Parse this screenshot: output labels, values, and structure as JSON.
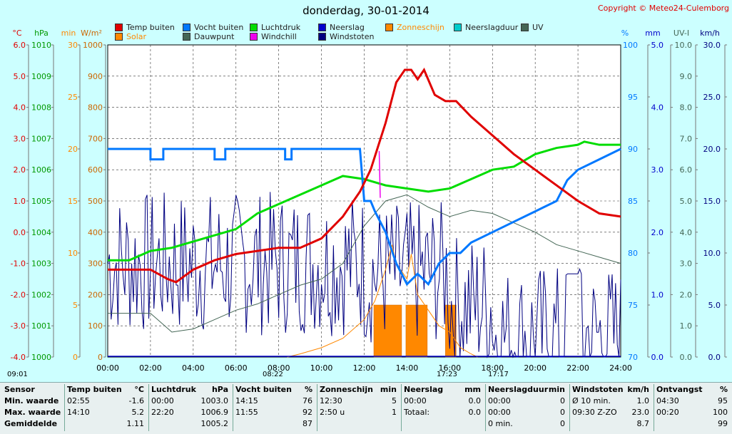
{
  "title": "donderdag, 30-01-2014",
  "copyright": "Copyright © Meteo24-Culemborg",
  "legend": [
    {
      "label": "Temp buiten",
      "color": "#e00000"
    },
    {
      "label": "Solar",
      "color": "#ff8800"
    },
    {
      "label": "Vocht buiten",
      "color": "#0078ff"
    },
    {
      "label": "Dauwpunt",
      "color": "#446655"
    },
    {
      "label": "Luchtdruk",
      "color": "#00dd00"
    },
    {
      "label": "Windchill",
      "color": "#ee00ee"
    },
    {
      "label": "Neerslag",
      "color": "#0000cc"
    },
    {
      "label": "Windstoten",
      "color": "#000080"
    },
    {
      "label": "Zonneschijn",
      "color": "#ff8800"
    },
    {
      "label": "Neerslagduur",
      "color": "#00cccc"
    },
    {
      "label": "UV",
      "color": "#446655"
    }
  ],
  "axes": {
    "temp": {
      "unit": "°C",
      "ticks": [
        "6.0",
        "5.0",
        "4.0",
        "3.0",
        "2.0",
        "1.0",
        "0.0",
        "-1.0",
        "-2.0",
        "-3.0",
        "-4.0"
      ],
      "color": "#e00000"
    },
    "pressure": {
      "unit": "hPa",
      "ticks": [
        "1010",
        "1009",
        "1008",
        "1007",
        "1006",
        "1005",
        "1004",
        "1003",
        "1002",
        "1001",
        "1000"
      ],
      "color": "#009900"
    },
    "sunmin": {
      "unit": "min",
      "ticks": [
        "30",
        "25",
        "20",
        "15",
        "10",
        "5",
        "0"
      ],
      "color": "#ff8800"
    },
    "solar": {
      "unit": "W/m²",
      "ticks": [
        "1000",
        "900",
        "800",
        "700",
        "600",
        "500",
        "400",
        "300",
        "200",
        "100",
        "0"
      ],
      "color": "#cc6600"
    },
    "humidity": {
      "unit": "%",
      "ticks": [
        "100",
        "95",
        "90",
        "85",
        "80",
        "75",
        "70"
      ],
      "color": "#0078ff"
    },
    "rain": {
      "unit": "mm",
      "ticks": [
        "5.0",
        "4.0",
        "3.0",
        "2.0",
        "1.0",
        "0.0"
      ],
      "color": "#0000cc"
    },
    "uv": {
      "unit": "UV-I",
      "ticks": [
        "10.0",
        "9.0",
        "8.0",
        "7.0",
        "6.0",
        "5.0",
        "4.0",
        "3.0",
        "2.0",
        "1.0",
        "0.0"
      ],
      "color": "#446655"
    },
    "wind": {
      "unit": "km/h",
      "ticks": [
        "30.0",
        "25.0",
        "20.0",
        "15.0",
        "10.0",
        "5.0",
        "0.0"
      ],
      "color": "#000080"
    },
    "time": [
      "00:00",
      "02:00",
      "04:00",
      "06:00",
      "08:00",
      "10:00",
      "12:00",
      "14:00",
      "16:00",
      "18:00",
      "20:00",
      "22:00",
      "24:00"
    ]
  },
  "markers": {
    "sunrise": "08:22",
    "sunset": "17:23",
    "twilight_start": "09:01",
    "twilight_end": "17:17"
  },
  "chart_data": {
    "type": "line",
    "x_unit": "hours",
    "series": [
      {
        "name": "Temp buiten",
        "values": [
          [
            0,
            -1.2
          ],
          [
            2,
            -1.2
          ],
          [
            2.8,
            -1.5
          ],
          [
            3.2,
            -1.6
          ],
          [
            4,
            -1.2
          ],
          [
            5,
            -0.9
          ],
          [
            6,
            -0.7
          ],
          [
            7,
            -0.6
          ],
          [
            8,
            -0.5
          ],
          [
            9,
            -0.5
          ],
          [
            10,
            -0.2
          ],
          [
            11,
            0.5
          ],
          [
            11.8,
            1.3
          ],
          [
            12.3,
            2.0
          ],
          [
            13,
            3.5
          ],
          [
            13.5,
            4.8
          ],
          [
            13.9,
            5.2
          ],
          [
            14.2,
            5.2
          ],
          [
            14.5,
            4.9
          ],
          [
            14.8,
            5.2
          ],
          [
            15.3,
            4.4
          ],
          [
            15.8,
            4.2
          ],
          [
            16.3,
            4.2
          ],
          [
            17,
            3.7
          ],
          [
            18,
            3.1
          ],
          [
            19,
            2.5
          ],
          [
            20,
            2.0
          ],
          [
            21,
            1.5
          ],
          [
            22,
            1.0
          ],
          [
            23,
            0.6
          ],
          [
            24,
            0.5
          ]
        ]
      },
      {
        "name": "Vocht buiten",
        "values": [
          [
            0,
            90
          ],
          [
            2,
            90
          ],
          [
            2,
            89
          ],
          [
            2.6,
            89
          ],
          [
            2.6,
            90
          ],
          [
            5,
            90
          ],
          [
            5,
            89
          ],
          [
            5.5,
            89
          ],
          [
            5.5,
            90
          ],
          [
            8.3,
            90
          ],
          [
            8.3,
            89
          ],
          [
            8.6,
            89
          ],
          [
            8.6,
            90
          ],
          [
            11.8,
            90
          ],
          [
            12,
            85
          ],
          [
            12.3,
            85
          ],
          [
            12.5,
            84
          ],
          [
            13,
            82
          ],
          [
            13.5,
            79
          ],
          [
            14,
            77
          ],
          [
            14.5,
            78
          ],
          [
            15,
            77
          ],
          [
            15.5,
            79
          ],
          [
            16,
            80
          ],
          [
            16.5,
            80
          ],
          [
            17,
            81
          ],
          [
            18,
            82
          ],
          [
            19,
            83
          ],
          [
            20,
            84
          ],
          [
            21,
            85
          ],
          [
            21.5,
            87
          ],
          [
            22,
            88
          ],
          [
            23,
            89
          ],
          [
            24,
            90
          ]
        ]
      },
      {
        "name": "Luchtdruk",
        "values": [
          [
            0,
            1003.1
          ],
          [
            1,
            1003.1
          ],
          [
            2,
            1003.4
          ],
          [
            3,
            1003.5
          ],
          [
            4,
            1003.7
          ],
          [
            5,
            1003.9
          ],
          [
            6,
            1004.1
          ],
          [
            7,
            1004.6
          ],
          [
            8,
            1004.9
          ],
          [
            9,
            1005.2
          ],
          [
            10,
            1005.5
          ],
          [
            11,
            1005.8
          ],
          [
            12,
            1005.7
          ],
          [
            13,
            1005.5
          ],
          [
            14,
            1005.4
          ],
          [
            15,
            1005.3
          ],
          [
            16,
            1005.4
          ],
          [
            17,
            1005.7
          ],
          [
            18,
            1006.0
          ],
          [
            19,
            1006.1
          ],
          [
            20,
            1006.5
          ],
          [
            21,
            1006.7
          ],
          [
            22,
            1006.8
          ],
          [
            22.3,
            1006.9
          ],
          [
            23,
            1006.8
          ],
          [
            24,
            1006.8
          ]
        ]
      },
      {
        "name": "Dauwpunt",
        "values": [
          [
            0,
            -2.6
          ],
          [
            2,
            -2.6
          ],
          [
            3,
            -3.2
          ],
          [
            4,
            -3.1
          ],
          [
            5,
            -2.8
          ],
          [
            6,
            -2.5
          ],
          [
            7,
            -2.3
          ],
          [
            8,
            -2.0
          ],
          [
            9,
            -1.7
          ],
          [
            10,
            -1.5
          ],
          [
            11,
            -1.0
          ],
          [
            12,
            0.2
          ],
          [
            13,
            1.0
          ],
          [
            14,
            1.2
          ],
          [
            15,
            0.8
          ],
          [
            16,
            0.5
          ],
          [
            17,
            0.7
          ],
          [
            18,
            0.6
          ],
          [
            19,
            0.3
          ],
          [
            20,
            0
          ],
          [
            21,
            -0.4
          ],
          [
            22,
            -0.6
          ],
          [
            23,
            -0.8
          ],
          [
            24,
            -1.0
          ]
        ]
      },
      {
        "name": "Solar",
        "values": [
          [
            8.4,
            0
          ],
          [
            9,
            10
          ],
          [
            10,
            30
          ],
          [
            11,
            60
          ],
          [
            12,
            120
          ],
          [
            12.5,
            180
          ],
          [
            13,
            280
          ],
          [
            13.3,
            360
          ],
          [
            13.5,
            300
          ],
          [
            14,
            250
          ],
          [
            14.2,
            330
          ],
          [
            14.5,
            200
          ],
          [
            15,
            150
          ],
          [
            15.5,
            100
          ],
          [
            16,
            80
          ],
          [
            16.5,
            30
          ],
          [
            17,
            10
          ],
          [
            17.3,
            0
          ]
        ]
      },
      {
        "name": "Zonneschijn",
        "values": [
          [
            12.5,
            5
          ],
          [
            13,
            5
          ],
          [
            13.5,
            5
          ],
          [
            13.9,
            5
          ],
          [
            14,
            5
          ],
          [
            14.5,
            5
          ],
          [
            15,
            5
          ],
          [
            16.5,
            5
          ]
        ]
      }
    ],
    "xlim": [
      0,
      24
    ]
  },
  "stats": {
    "columns": [
      {
        "header": [
          "Sensor",
          ""
        ],
        "rows": [
          [
            "Min. waarde",
            ""
          ],
          [
            "Max. waarde",
            ""
          ],
          [
            "Gemiddelde",
            ""
          ]
        ]
      },
      {
        "header": [
          "Temp buiten",
          "°C"
        ],
        "rows": [
          [
            "02:55",
            "-1.6"
          ],
          [
            "14:10",
            "5.2"
          ],
          [
            "",
            "1.11"
          ]
        ]
      },
      {
        "header": [
          "Luchtdruk",
          "hPa"
        ],
        "rows": [
          [
            "00:00",
            "1003.0"
          ],
          [
            "22:20",
            "1006.9"
          ],
          [
            "",
            "1005.2"
          ]
        ]
      },
      {
        "header": [
          "Vocht buiten",
          "%"
        ],
        "rows": [
          [
            "14:15",
            "76"
          ],
          [
            "11:55",
            "92"
          ],
          [
            "",
            "87"
          ]
        ]
      },
      {
        "header": [
          "Zonneschijn",
          "min"
        ],
        "rows": [
          [
            "",
            ""
          ],
          [
            "12:30",
            "5"
          ],
          [
            "2:50 u",
            "1"
          ]
        ]
      },
      {
        "header": [
          "Neerslag",
          "mm"
        ],
        "rows": [
          [
            "",
            ""
          ],
          [
            "00:00",
            "0.0"
          ],
          [
            "Totaal:",
            "0.0"
          ]
        ]
      },
      {
        "header": [
          "Neerslagduur",
          "min"
        ],
        "rows": [
          [
            "00:00",
            "0"
          ],
          [
            "00:00",
            "0"
          ],
          [
            "0 min.",
            "0"
          ]
        ]
      },
      {
        "header": [
          "Windstoten",
          "km/h"
        ],
        "rows": [
          [
            "Ø 10 min.",
            "1.0"
          ],
          [
            "09:30  Z-ZO",
            "23.0"
          ],
          [
            "",
            "8.7"
          ]
        ]
      },
      {
        "header": [
          "Ontvangst",
          "%"
        ],
        "rows": [
          [
            "04:30",
            "95"
          ],
          [
            "00:20",
            "100"
          ],
          [
            "",
            "99"
          ]
        ]
      }
    ]
  }
}
